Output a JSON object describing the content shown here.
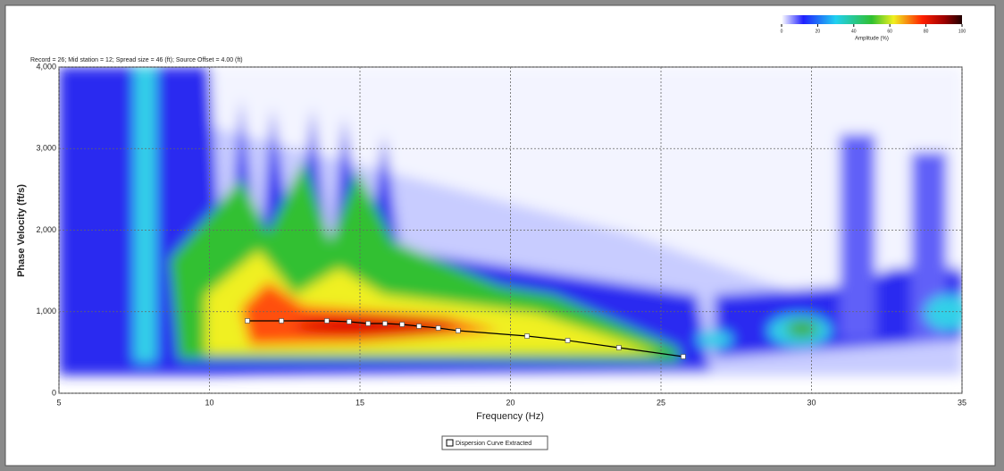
{
  "chart_data": {
    "type": "line",
    "title": "Record = 26; Mid station = 12; Spread size = 46 (ft); Source Offset = 4.00 (ft)",
    "x_label": "Frequency (Hz)",
    "y_label": "Phase Velocity (ft/s)",
    "xlim": [
      5,
      35
    ],
    "xticks": [
      5,
      10,
      15,
      20,
      25,
      30,
      35
    ],
    "ylim": [
      0,
      4000
    ],
    "yticks": [
      0,
      {
        "value": 1000,
        "label": "1,000"
      },
      {
        "value": 2000,
        "label": "2,000"
      },
      {
        "value": 3000,
        "label": "3,000"
      },
      {
        "value": 4000,
        "label": "4,000"
      }
    ],
    "grid": true,
    "series": [
      {
        "name": "Dispersion Curve Extracted",
        "color": "#000000",
        "x": [
          11.26,
          12.39,
          13.9,
          14.64,
          15.27,
          15.83,
          16.4,
          16.96,
          17.6,
          18.26,
          20.55,
          21.9,
          23.6,
          25.74
        ],
        "values": [
          888,
          888,
          888,
          877,
          855,
          855,
          844,
          822,
          800,
          767,
          701,
          647,
          559,
          449
        ]
      }
    ],
    "colorbar": {
      "label": "Amplitude (%)",
      "lim": [
        0,
        100
      ],
      "ticks": [
        0,
        20,
        40,
        60,
        80,
        100
      ]
    }
  }
}
